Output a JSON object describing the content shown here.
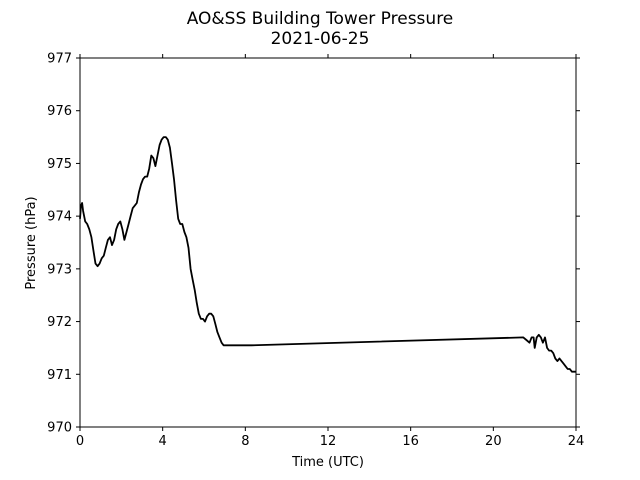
{
  "chart_data": {
    "type": "line",
    "title": "AO&SS Building Tower Pressure",
    "subtitle": "2021-06-25",
    "xlabel": "Time (UTC)",
    "ylabel": "Pressure (hPa)",
    "xlim": [
      0,
      24
    ],
    "ylim": [
      970,
      977
    ],
    "x_ticks": [
      0,
      4,
      8,
      12,
      16,
      20,
      24
    ],
    "y_ticks": [
      970,
      971,
      972,
      973,
      974,
      975,
      976,
      977
    ],
    "grid": false,
    "legend": "none",
    "series": [
      {
        "color": "#000000",
        "x": [
          0.0,
          0.05,
          0.1,
          0.15,
          0.25,
          0.35,
          0.45,
          0.55,
          0.65,
          0.75,
          0.85,
          0.95,
          1.05,
          1.15,
          1.25,
          1.35,
          1.45,
          1.55,
          1.65,
          1.75,
          1.85,
          1.95,
          2.05,
          2.15,
          2.25,
          2.35,
          2.45,
          2.55,
          2.65,
          2.75,
          2.85,
          2.95,
          3.05,
          3.15,
          3.25,
          3.35,
          3.45,
          3.55,
          3.65,
          3.75,
          3.85,
          3.95,
          4.05,
          4.15,
          4.25,
          4.35,
          4.45,
          4.55,
          4.65,
          4.75,
          4.85,
          4.95,
          5.05,
          5.15,
          5.25,
          5.35,
          5.45,
          5.55,
          5.65,
          5.75,
          5.85,
          5.95,
          6.05,
          6.15,
          6.25,
          6.35,
          6.45,
          6.55,
          6.65,
          6.75,
          6.85,
          6.95,
          7.05,
          7.15,
          7.25,
          7.35,
          7.45,
          7.55,
          7.65,
          7.75,
          7.85,
          7.95,
          8.05,
          8.15,
          8.3,
          21.45,
          21.6,
          21.75,
          21.85,
          21.95,
          22.0,
          22.1,
          22.2,
          22.3,
          22.4,
          22.5,
          22.6,
          22.7,
          22.8,
          22.9,
          23.0,
          23.1,
          23.2,
          23.3,
          23.4,
          23.5,
          23.6,
          23.7,
          23.8,
          23.9,
          24.0
        ],
        "y": [
          973.95,
          974.2,
          974.25,
          974.1,
          973.9,
          973.85,
          973.75,
          973.6,
          973.35,
          973.1,
          973.05,
          973.1,
          973.2,
          973.25,
          973.4,
          973.55,
          973.6,
          973.45,
          973.55,
          973.75,
          973.85,
          973.9,
          973.75,
          973.55,
          973.7,
          973.85,
          974.0,
          974.15,
          974.2,
          974.25,
          974.45,
          974.6,
          974.7,
          974.75,
          974.75,
          974.9,
          975.15,
          975.1,
          974.95,
          975.15,
          975.35,
          975.45,
          975.5,
          975.5,
          975.45,
          975.3,
          975.0,
          974.7,
          974.3,
          973.95,
          973.85,
          973.85,
          973.7,
          973.6,
          973.4,
          973.0,
          972.8,
          972.6,
          972.35,
          972.15,
          972.05,
          972.05,
          972.0,
          972.1,
          972.15,
          972.15,
          972.1,
          971.95,
          971.8,
          971.7,
          971.6,
          971.55,
          971.55,
          971.55,
          971.55,
          971.55,
          971.55,
          971.55,
          971.55,
          971.55,
          971.55,
          971.55,
          971.55,
          971.55,
          971.55,
          971.7,
          971.65,
          971.6,
          971.7,
          971.7,
          971.5,
          971.7,
          971.75,
          971.7,
          971.6,
          971.7,
          971.5,
          971.45,
          971.45,
          971.4,
          971.3,
          971.25,
          971.3,
          971.25,
          971.2,
          971.15,
          971.1,
          971.1,
          971.05,
          971.05,
          971.05
        ]
      }
    ]
  }
}
